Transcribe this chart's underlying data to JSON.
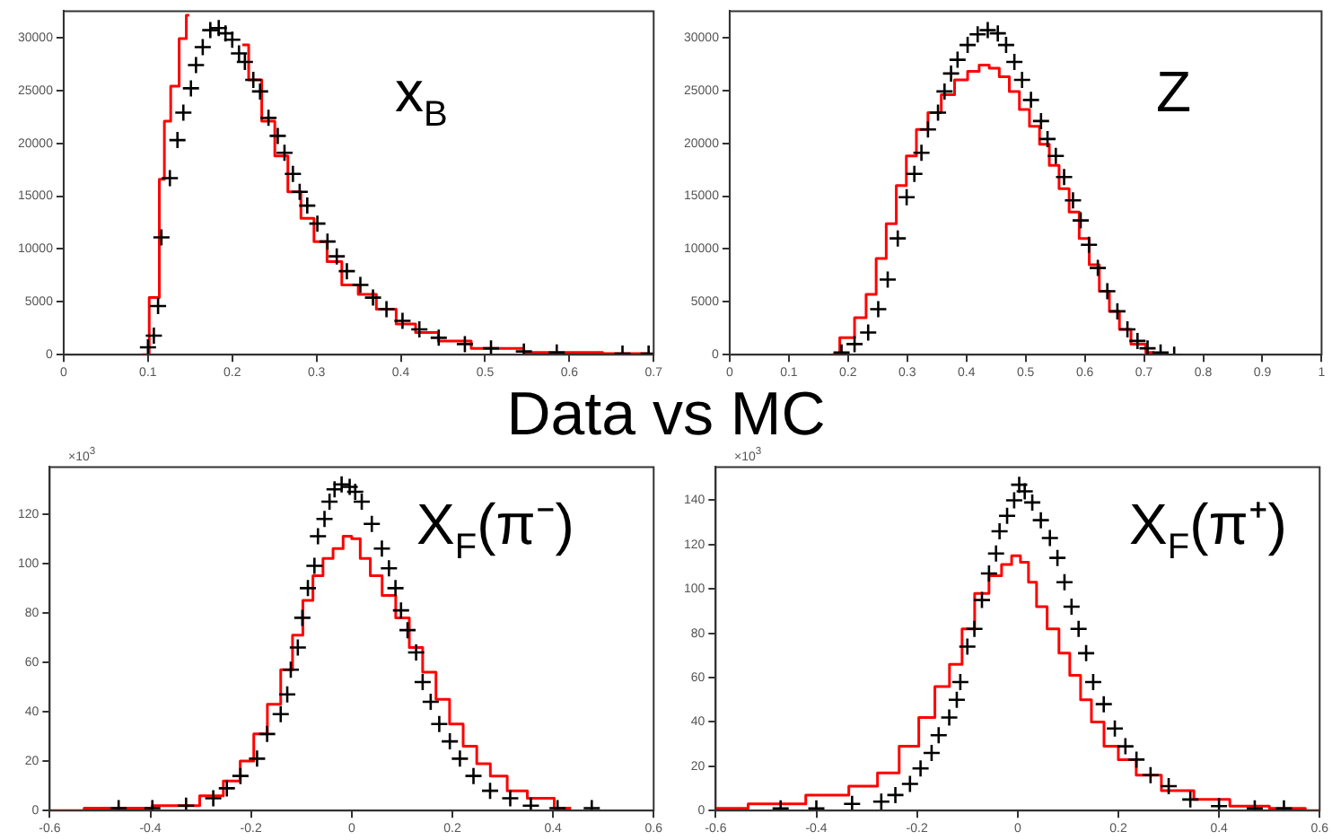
{
  "chart_data": [
    {
      "type": "scatter",
      "title": "x$_{B}$",
      "annotations": [
        "Data vs MC"
      ],
      "xlim": [
        0,
        0.7
      ],
      "xticks": [
        0,
        0.1,
        0.2,
        0.3,
        0.4,
        0.5,
        0.6,
        0.7
      ],
      "ylim": [
        0,
        32500
      ],
      "yticks": [
        0,
        5000,
        10000,
        15000,
        20000,
        25000,
        30000
      ],
      "grid": false,
      "legend": false,
      "series": [
        {
          "marker": "cross",
          "color": "#000000",
          "x": [
            0.1,
            0.107,
            0.112,
            0.116,
            0.126,
            0.135,
            0.142,
            0.151,
            0.157,
            0.165,
            0.174,
            0.184,
            0.192,
            0.2,
            0.208,
            0.215,
            0.225,
            0.233,
            0.243,
            0.254,
            0.262,
            0.272,
            0.28,
            0.289,
            0.301,
            0.313,
            0.324,
            0.336,
            0.352,
            0.367,
            0.383,
            0.402,
            0.422,
            0.445,
            0.476,
            0.507,
            0.546,
            0.585,
            0.663,
            0.694
          ],
          "values": [
            700,
            1800,
            4600,
            11100,
            16700,
            20300,
            22900,
            25200,
            27400,
            29100,
            30700,
            30900,
            30400,
            29800,
            28500,
            27700,
            26000,
            24900,
            22400,
            20700,
            19100,
            17100,
            15400,
            14100,
            12400,
            10700,
            9300,
            7900,
            6600,
            5400,
            4300,
            3200,
            2400,
            1600,
            1000,
            600,
            300,
            200,
            100,
            100
          ]
        },
        {
          "type": "step",
          "color": "#ff0000",
          "x": [
            0.093,
            0.11,
            0.117,
            0.122,
            0.132,
            0.142,
            0.149,
            0.175,
            0.212,
            0.227,
            0.243,
            0.258,
            0.274,
            0.289,
            0.305,
            0.32,
            0.34,
            0.359,
            0.383,
            0.406,
            0.429,
            0.46,
            0.507,
            0.585,
            0.694
          ],
          "values": [
            0,
            5400,
            16600,
            22100,
            25400,
            29900,
            32100,
            null,
            29300,
            26000,
            22100,
            18800,
            15400,
            12900,
            10700,
            8800,
            6600,
            5700,
            4300,
            2900,
            2100,
            1300,
            600,
            200,
            100
          ]
        }
      ]
    },
    {
      "type": "scatter",
      "title": "Z",
      "xlim": [
        0,
        1
      ],
      "xticks": [
        0,
        0.1,
        0.2,
        0.3,
        0.4,
        0.5,
        0.6,
        0.7,
        0.8,
        0.9,
        1
      ],
      "ylim": [
        0,
        32500
      ],
      "yticks": [
        0,
        5000,
        10000,
        15000,
        20000,
        25000,
        30000
      ],
      "grid": false,
      "legend": false,
      "series": [
        {
          "marker": "cross",
          "color": "#000000",
          "x": [
            0.189,
            0.211,
            0.234,
            0.251,
            0.267,
            0.284,
            0.299,
            0.312,
            0.324,
            0.335,
            0.352,
            0.363,
            0.374,
            0.385,
            0.402,
            0.419,
            0.436,
            0.453,
            0.467,
            0.481,
            0.494,
            0.509,
            0.526,
            0.537,
            0.551,
            0.565,
            0.58,
            0.593,
            0.607,
            0.622,
            0.638,
            0.655,
            0.672,
            0.689,
            0.706,
            0.728,
            0.751
          ],
          "values": [
            200,
            1000,
            2100,
            4300,
            7100,
            11000,
            14900,
            17100,
            19100,
            21300,
            22900,
            24900,
            26600,
            27900,
            29300,
            30300,
            30700,
            30400,
            29300,
            27700,
            26000,
            24100,
            22100,
            20400,
            18800,
            16800,
            14600,
            12700,
            10400,
            8200,
            6000,
            4100,
            2400,
            1300,
            600,
            200,
            0
          ]
        },
        {
          "type": "step",
          "color": "#ff0000",
          "x": [
            0.172,
            0.2,
            0.222,
            0.239,
            0.256,
            0.273,
            0.29,
            0.307,
            0.324,
            0.346,
            0.369,
            0.391,
            0.413,
            0.43,
            0.447,
            0.464,
            0.481,
            0.498,
            0.515,
            0.532,
            0.548,
            0.565,
            0.582,
            0.599,
            0.616,
            0.633,
            0.65,
            0.667,
            0.689,
            0.717
          ],
          "values": [
            0,
            1600,
            3500,
            5700,
            9100,
            12400,
            16000,
            18800,
            21300,
            22900,
            24600,
            26000,
            26800,
            27400,
            27100,
            26300,
            24900,
            23200,
            21600,
            19900,
            17900,
            15700,
            13500,
            11000,
            8500,
            6000,
            4100,
            2400,
            1000,
            200
          ]
        }
      ]
    },
    {
      "type": "scatter",
      "title": "X$_{F}$(π⁻)",
      "annotations": [
        "×10$^{3}$"
      ],
      "xlim": [
        -0.6,
        0.6
      ],
      "xticks": [
        -0.6,
        -0.4,
        -0.2,
        0,
        0.2,
        0.4,
        0.6
      ],
      "ylim": [
        0,
        139
      ],
      "yticks": [
        0,
        20,
        40,
        60,
        80,
        100,
        120
      ],
      "grid": false,
      "legend": false,
      "series": [
        {
          "marker": "cross",
          "color": "#000000",
          "x": [
            -0.463,
            -0.396,
            -0.329,
            -0.275,
            -0.248,
            -0.221,
            -0.188,
            -0.168,
            -0.141,
            -0.128,
            -0.121,
            -0.107,
            -0.098,
            -0.087,
            -0.074,
            -0.067,
            -0.054,
            -0.044,
            -0.034,
            -0.02,
            -0.004,
            0.007,
            0.02,
            0.04,
            0.06,
            0.074,
            0.087,
            0.098,
            0.111,
            0.128,
            0.141,
            0.157,
            0.174,
            0.195,
            0.215,
            0.242,
            0.275,
            0.315,
            0.356,
            0.409,
            0.477
          ],
          "values": [
            1,
            1,
            2,
            5,
            9,
            14,
            21,
            31,
            39,
            47,
            57,
            66,
            78,
            90,
            99,
            111,
            118,
            125,
            130,
            132,
            131,
            129,
            125,
            116,
            106,
            98,
            90,
            81,
            73,
            64,
            52,
            44,
            35,
            28,
            21,
            14,
            8,
            5,
            2,
            1,
            1
          ]
        },
        {
          "type": "step",
          "color": "#ff0000",
          "x": [
            -0.6,
            -0.463,
            -0.329,
            -0.275,
            -0.235,
            -0.208,
            -0.181,
            -0.154,
            -0.128,
            -0.107,
            -0.087,
            -0.067,
            -0.047,
            -0.027,
            -0.007,
            0.007,
            0.027,
            0.047,
            0.074,
            0.101,
            0.128,
            0.154,
            0.181,
            0.208,
            0.235,
            0.262,
            0.289,
            0.329,
            0.369,
            0.436
          ],
          "values": [
            0,
            1,
            2,
            6,
            12,
            20,
            31,
            43,
            57,
            71,
            85,
            95,
            102,
            106,
            111,
            110,
            102,
            95,
            87,
            78,
            66,
            56,
            45,
            35,
            26,
            19,
            14,
            8,
            5,
            1
          ]
        }
      ]
    },
    {
      "type": "scatter",
      "title": "X$_{F}$(π⁺)",
      "annotations": [
        "×10$^{3}$"
      ],
      "xlim": [
        -0.6,
        0.6
      ],
      "xticks": [
        -0.6,
        -0.4,
        -0.2,
        0,
        0.2,
        0.4,
        0.6
      ],
      "ylim": [
        0,
        155
      ],
      "yticks": [
        0,
        20,
        40,
        60,
        80,
        100,
        120,
        140
      ],
      "grid": false,
      "legend": false,
      "series": [
        {
          "marker": "cross",
          "color": "#000000",
          "x": [
            -0.471,
            -0.4,
            -0.329,
            -0.271,
            -0.243,
            -0.214,
            -0.193,
            -0.171,
            -0.157,
            -0.136,
            -0.121,
            -0.114,
            -0.1,
            -0.086,
            -0.071,
            -0.057,
            -0.043,
            -0.036,
            -0.021,
            -0.007,
            0.003,
            0.014,
            0.029,
            0.046,
            0.064,
            0.079,
            0.093,
            0.107,
            0.121,
            0.136,
            0.15,
            0.171,
            0.193,
            0.214,
            0.236,
            0.264,
            0.3,
            0.343,
            0.4,
            0.471,
            0.529
          ],
          "values": [
            1,
            1,
            3,
            4,
            7,
            12,
            19,
            26,
            34,
            42,
            50,
            58,
            74,
            82,
            95,
            107,
            116,
            126,
            133,
            140,
            147,
            144,
            139,
            131,
            123,
            114,
            103,
            92,
            82,
            71,
            58,
            48,
            37,
            29,
            23,
            16,
            11,
            5,
            2,
            1,
            1
          ]
        },
        {
          "type": "step",
          "color": "#ff0000",
          "x": [
            -0.6,
            -0.471,
            -0.371,
            -0.3,
            -0.257,
            -0.214,
            -0.179,
            -0.15,
            -0.121,
            -0.1,
            -0.071,
            -0.043,
            -0.021,
            -0.003,
            0.014,
            0.029,
            0.046,
            0.071,
            0.093,
            0.114,
            0.136,
            0.157,
            0.186,
            0.214,
            0.257,
            0.314,
            0.386,
            0.457,
            0.543,
            0.6
          ],
          "values": [
            1,
            3,
            7,
            11,
            17,
            29,
            42,
            56,
            66,
            82,
            98,
            106,
            111,
            115,
            112,
            103,
            92,
            82,
            71,
            61,
            50,
            40,
            29,
            23,
            16,
            9,
            5,
            2,
            1,
            0
          ]
        }
      ]
    }
  ]
}
